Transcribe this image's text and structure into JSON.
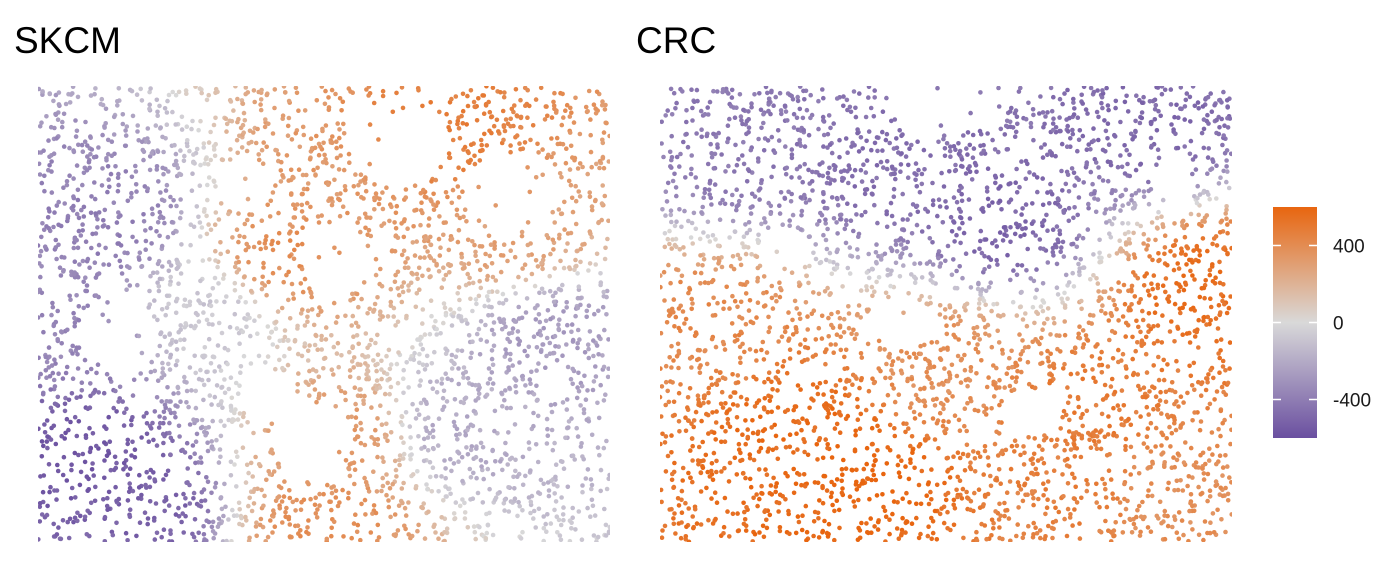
{
  "chart_data": [
    {
      "type": "scatter",
      "title": "SKCM",
      "xlabel": "",
      "ylabel": "",
      "grid": false,
      "legend": "shared-right",
      "cells": [
        {
          "x": 0.05,
          "y": 0.55,
          "value": -360
        },
        {
          "x": 0.12,
          "y": 0.3,
          "value": -390
        },
        {
          "x": 0.08,
          "y": 0.8,
          "value": -560
        },
        {
          "x": 0.18,
          "y": 0.92,
          "value": -520
        },
        {
          "x": 0.3,
          "y": 0.5,
          "value": -80
        },
        {
          "x": 0.43,
          "y": 0.38,
          "value": 380
        },
        {
          "x": 0.55,
          "y": 0.2,
          "value": 330
        },
        {
          "x": 0.7,
          "y": 0.1,
          "value": 470
        },
        {
          "x": 0.83,
          "y": 0.32,
          "value": 300
        },
        {
          "x": 0.52,
          "y": 0.78,
          "value": 320
        },
        {
          "x": 0.75,
          "y": 0.75,
          "value": -200
        },
        {
          "x": 0.9,
          "y": 0.55,
          "value": -260
        },
        {
          "x": 0.5,
          "y": 0.96,
          "value": 380
        }
      ]
    },
    {
      "type": "scatter",
      "title": "CRC",
      "xlabel": "",
      "ylabel": "",
      "grid": false,
      "legend": "shared-right",
      "cells": [
        {
          "x": 0.15,
          "y": 0.12,
          "value": -420
        },
        {
          "x": 0.4,
          "y": 0.18,
          "value": -460
        },
        {
          "x": 0.6,
          "y": 0.3,
          "value": -500
        },
        {
          "x": 0.85,
          "y": 0.08,
          "value": -480
        },
        {
          "x": 0.1,
          "y": 0.55,
          "value": 420
        },
        {
          "x": 0.22,
          "y": 0.75,
          "value": 560
        },
        {
          "x": 0.35,
          "y": 0.85,
          "value": 600
        },
        {
          "x": 0.5,
          "y": 0.62,
          "value": 380
        },
        {
          "x": 0.75,
          "y": 0.7,
          "value": 480
        },
        {
          "x": 0.95,
          "y": 0.45,
          "value": 540
        },
        {
          "x": 0.72,
          "y": 0.88,
          "value": 460
        },
        {
          "x": 0.9,
          "y": 0.9,
          "value": 380
        }
      ]
    }
  ],
  "colorbar": {
    "range": [
      -600,
      600
    ],
    "ticks": [
      {
        "value": 400,
        "label": "400"
      },
      {
        "value": 0,
        "label": "0"
      },
      {
        "value": -400,
        "label": "-400"
      }
    ],
    "colors": {
      "low": "#6a4fa0",
      "mid": "#d9d9d9",
      "high": "#e8650f"
    }
  }
}
